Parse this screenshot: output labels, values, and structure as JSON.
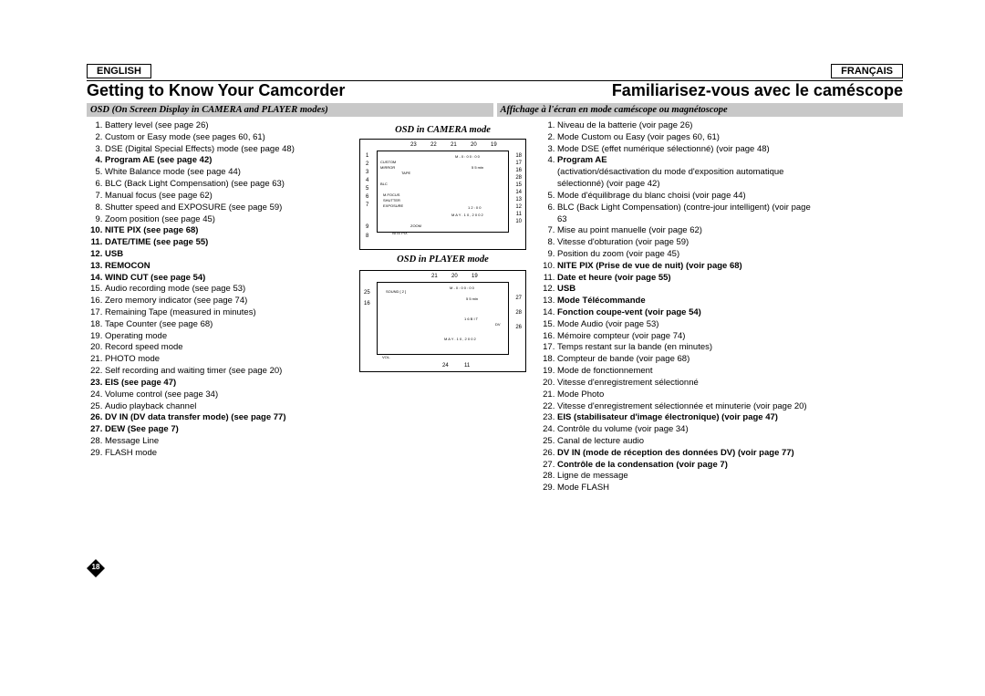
{
  "lang": {
    "en": "ENGLISH",
    "fr": "FRANÇAIS"
  },
  "title": {
    "en": "Getting to Know Your Camcorder",
    "fr": "Familiarisez-vous avec le caméscope"
  },
  "subtitle": {
    "en": "OSD (On Screen Display in CAMERA and PLAYER modes)",
    "fr": "Affichage à l'écran en mode caméscope ou magnétoscope"
  },
  "mode_titles": {
    "camera": "OSD in CAMERA mode",
    "player": "OSD in PLAYER mode"
  },
  "en_list": [
    {
      "t": "Battery level (see page 26)"
    },
    {
      "t": "Custom or Easy mode (see pages 60, 61)"
    },
    {
      "t": "DSE (Digital Special Effects) mode (see page 48)"
    },
    {
      "t": "Program AE (see page 42)",
      "b": true
    },
    {
      "t": "White Balance mode (see page 44)"
    },
    {
      "t": "BLC (Back Light Compensation) (see page 63)"
    },
    {
      "t": "Manual focus (see page 62)"
    },
    {
      "t": "Shutter speed and EXPOSURE (see page 59)"
    },
    {
      "t": "Zoom position (see page 45)"
    },
    {
      "t": "NITE PIX (see page 68)",
      "b": true
    },
    {
      "t": "DATE/TIME (see page 55)",
      "b": true
    },
    {
      "t": "USB",
      "b": true
    },
    {
      "t": "REMOCON",
      "b": true
    },
    {
      "t": "WIND CUT (see page 54)",
      "b": true
    },
    {
      "t": "Audio recording mode (see page 53)"
    },
    {
      "t": "Zero memory indicator (see page 74)"
    },
    {
      "t": "Remaining Tape (measured in minutes)"
    },
    {
      "t": "Tape Counter (see page 68)"
    },
    {
      "t": "Operating mode"
    },
    {
      "t": "Record speed mode"
    },
    {
      "t": "PHOTO mode"
    },
    {
      "t": "Self recording and waiting timer (see page 20)"
    },
    {
      "t": "EIS (see page 47)",
      "b": true
    },
    {
      "t": "Volume control (see page 34)"
    },
    {
      "t": "Audio playback channel"
    },
    {
      "t": "DV IN (DV data transfer mode) (see page 77)",
      "b": true
    },
    {
      "t": "DEW (See page 7)",
      "b": true
    },
    {
      "t": "Message Line"
    },
    {
      "t": "FLASH mode"
    }
  ],
  "fr_list": [
    {
      "t": "Niveau de la batterie (voir page 26)"
    },
    {
      "t": "Mode Custom ou Easy (voir pages 60, 61)"
    },
    {
      "t": "Mode DSE (effet numérique sélectionné) (voir page 48)"
    },
    {
      "t": "Program AE",
      "b": true,
      "extra": "(activation/désactivation du mode d'exposition automatique sélectionné) (voir page 42)"
    },
    {
      "t": "Mode d'équilibrage du blanc choisi (voir page 44)"
    },
    {
      "t": "BLC (Back Light Compensation) (contre-jour intelligent) (voir page 63"
    },
    {
      "t": "Mise au point manuelle (voir page 62)"
    },
    {
      "t": "Vitesse d'obturation (voir page 59)"
    },
    {
      "t": "Position du zoom (voir page 45)"
    },
    {
      "t": "NITE PIX (Prise de vue de nuit) (voir page 68)",
      "b": true
    },
    {
      "t": "Date et heure (voir page 55)",
      "b": true
    },
    {
      "t": "USB",
      "b": true
    },
    {
      "t": "Mode Télécommande",
      "b": true
    },
    {
      "t": "Fonction coupe-vent (voir page 54)",
      "b": true
    },
    {
      "t": "Mode Audio (voir page 53)"
    },
    {
      "t": "Mémoire compteur (voir page 74)"
    },
    {
      "t": "Temps restant sur la bande (en minutes)"
    },
    {
      "t": "Compteur de bande (voir page 68)"
    },
    {
      "t": "Mode de fonctionnement"
    },
    {
      "t": "Vitesse d'enregistrement sélectionné"
    },
    {
      "t": "Mode Photo"
    },
    {
      "t": "Vitesse d'enregistrement sélectionnée et minuterie (voir page 20)"
    },
    {
      "t": "EIS (stabilisateur d'image électronique) (voir page 47)",
      "b": true
    },
    {
      "t": "Contrôle du volume (voir page 34)"
    },
    {
      "t": "Canal de lecture audio"
    },
    {
      "t": "DV IN (mode de réception des données DV) (voir page 77)",
      "b": true
    },
    {
      "t": "Contrôle de la condensation (voir page 7)",
      "b": true
    },
    {
      "t": "Ligne de message"
    },
    {
      "t": "Mode FLASH"
    }
  ],
  "page_number": "18",
  "diagram_camera": {
    "top_nums": [
      "23",
      "22",
      "21",
      "20",
      "19"
    ],
    "left_nums": [
      "1",
      "2",
      "3",
      "4",
      "5",
      "6",
      "7"
    ],
    "right_nums": [
      "18",
      "17",
      "16",
      "28",
      "15",
      "14",
      "13",
      "12",
      "11",
      "10"
    ],
    "bottom_left": [
      "9",
      "8"
    ],
    "inner_text": [
      "CUSTOM",
      "MIRROR",
      "BLC",
      "TAPE",
      "M.FOCUS",
      "SHUTTER",
      "EXPOSURE",
      "ZOOM",
      "NITE PIX",
      "M - 0 : 0 0 : 0 0",
      "5 5 min",
      "1 2 : 0 0",
      "M A Y . 1 0 , 2 0 0 2"
    ]
  },
  "diagram_player": {
    "top_nums": [
      "21",
      "20",
      "19"
    ],
    "left_nums": [
      "25",
      "16"
    ],
    "right_nums": [
      "27",
      "28",
      "26"
    ],
    "bottom": [
      "24",
      "11"
    ],
    "inner_text": [
      "SOUND [ 2 ]",
      "M - 0 : 0 0 : 0 0",
      "5 5 min",
      "1 6 B I T",
      "M A Y . 1 0 , 2 0 0 2",
      "DV",
      "VOL."
    ]
  }
}
